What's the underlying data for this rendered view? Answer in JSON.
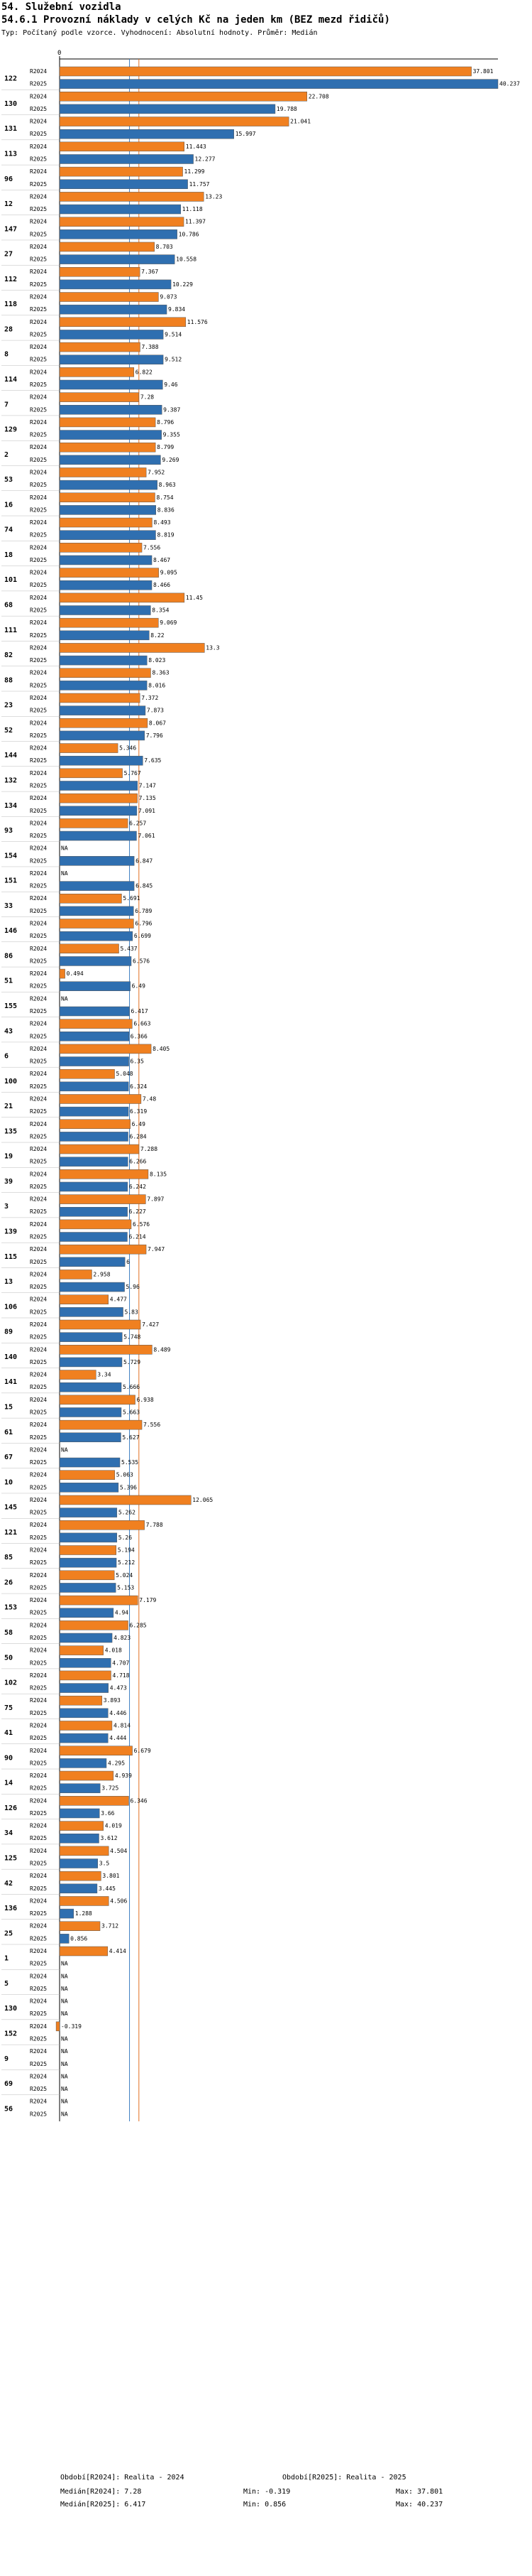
{
  "header": {
    "section": "54. Služební vozidla",
    "title": "54.6.1 Provozní náklady v celých Kč na jeden km (BEZ mezd řidičů)",
    "subtitle": "Typ: Počítaný podle vzorce. Vyhodnocení: Absolutní hodnoty. Průměr: Medián"
  },
  "chart_data": {
    "type": "bar",
    "orientation": "horizontal",
    "xlim": [
      0,
      40.237
    ],
    "x_tick_label": "0",
    "colors": {
      "R2024": "#f08020",
      "R2025": "#2f6fb0",
      "median2024": "#e07020",
      "median2025": "#3a7cc0",
      "grid": "#7ab0d8"
    },
    "medians": {
      "R2024": 7.28,
      "R2025": 6.417
    },
    "series_names": [
      "R2024",
      "R2025"
    ],
    "categories": [
      {
        "id": "122",
        "R2024": 37.801,
        "R2025": 40.237
      },
      {
        "id": "130",
        "R2024": 22.708,
        "R2025": 19.788
      },
      {
        "id": "131",
        "R2024": 21.041,
        "R2025": 15.997
      },
      {
        "id": "113",
        "R2024": 11.443,
        "R2025": 12.277
      },
      {
        "id": "96",
        "R2024": 11.299,
        "R2025": 11.757
      },
      {
        "id": "12",
        "R2024": 13.23,
        "R2025": 11.118
      },
      {
        "id": "147",
        "R2024": 11.397,
        "R2025": 10.786
      },
      {
        "id": "27",
        "R2024": 8.703,
        "R2025": 10.558
      },
      {
        "id": "112",
        "R2024": 7.367,
        "R2025": 10.229
      },
      {
        "id": "118",
        "R2024": 9.073,
        "R2025": 9.834
      },
      {
        "id": "28",
        "R2024": 11.576,
        "R2025": 9.514
      },
      {
        "id": "8",
        "R2024": 7.388,
        "R2025": 9.512
      },
      {
        "id": "114",
        "R2024": 6.822,
        "R2025": 9.46
      },
      {
        "id": "7",
        "R2024": 7.28,
        "R2025": 9.387
      },
      {
        "id": "129",
        "R2024": 8.796,
        "R2025": 9.355
      },
      {
        "id": "2",
        "R2024": 8.799,
        "R2025": 9.269
      },
      {
        "id": "53",
        "R2024": 7.952,
        "R2025": 8.963
      },
      {
        "id": "16",
        "R2024": 8.754,
        "R2025": 8.836
      },
      {
        "id": "74",
        "R2024": 8.493,
        "R2025": 8.819
      },
      {
        "id": "18",
        "R2024": 7.556,
        "R2025": 8.467
      },
      {
        "id": "101",
        "R2024": 9.095,
        "R2025": 8.466
      },
      {
        "id": "68",
        "R2024": 11.45,
        "R2025": 8.354
      },
      {
        "id": "111",
        "R2024": 9.069,
        "R2025": 8.22
      },
      {
        "id": "82",
        "R2024": 13.3,
        "R2025": 8.023
      },
      {
        "id": "88",
        "R2024": 8.363,
        "R2025": 8.016
      },
      {
        "id": "23",
        "R2024": 7.372,
        "R2025": 7.873
      },
      {
        "id": "52",
        "R2024": 8.067,
        "R2025": 7.796
      },
      {
        "id": "144",
        "R2024": 5.346,
        "R2025": 7.635
      },
      {
        "id": "132",
        "R2024": 5.767,
        "R2025": 7.147
      },
      {
        "id": "134",
        "R2024": 7.135,
        "R2025": 7.091
      },
      {
        "id": "93",
        "R2024": 6.257,
        "R2025": 7.061
      },
      {
        "id": "154",
        "R2024": null,
        "R2025": 6.847
      },
      {
        "id": "151",
        "R2024": null,
        "R2025": 6.845
      },
      {
        "id": "33",
        "R2024": 5.691,
        "R2025": 6.789
      },
      {
        "id": "146",
        "R2024": 6.796,
        "R2025": 6.699
      },
      {
        "id": "86",
        "R2024": 5.437,
        "R2025": 6.576
      },
      {
        "id": "51",
        "R2024": 0.494,
        "R2025": 6.49
      },
      {
        "id": "155",
        "R2024": null,
        "R2025": 6.417
      },
      {
        "id": "43",
        "R2024": 6.663,
        "R2025": 6.366
      },
      {
        "id": "6",
        "R2024": 8.405,
        "R2025": 6.35
      },
      {
        "id": "100",
        "R2024": 5.048,
        "R2025": 6.324
      },
      {
        "id": "21",
        "R2024": 7.48,
        "R2025": 6.319
      },
      {
        "id": "135",
        "R2024": 6.49,
        "R2025": 6.284
      },
      {
        "id": "19",
        "R2024": 7.288,
        "R2025": 6.266
      },
      {
        "id": "39",
        "R2024": 8.135,
        "R2025": 6.242
      },
      {
        "id": "3",
        "R2024": 7.897,
        "R2025": 6.227
      },
      {
        "id": "139",
        "R2024": 6.576,
        "R2025": 6.214
      },
      {
        "id": "115",
        "R2024": 7.947,
        "R2025": 6
      },
      {
        "id": "13",
        "R2024": 2.958,
        "R2025": 5.96
      },
      {
        "id": "106",
        "R2024": 4.477,
        "R2025": 5.83
      },
      {
        "id": "89",
        "R2024": 7.427,
        "R2025": 5.748
      },
      {
        "id": "140",
        "R2024": 8.489,
        "R2025": 5.729
      },
      {
        "id": "141",
        "R2024": 3.34,
        "R2025": 5.666
      },
      {
        "id": "15",
        "R2024": 6.938,
        "R2025": 5.663
      },
      {
        "id": "61",
        "R2024": 7.556,
        "R2025": 5.627
      },
      {
        "id": "67",
        "R2024": null,
        "R2025": 5.535
      },
      {
        "id": "10",
        "R2024": 5.063,
        "R2025": 5.396
      },
      {
        "id": "145",
        "R2024": 12.065,
        "R2025": 5.262
      },
      {
        "id": "121",
        "R2024": 7.788,
        "R2025": 5.26
      },
      {
        "id": "85",
        "R2024": 5.194,
        "R2025": 5.212
      },
      {
        "id": "26",
        "R2024": 5.024,
        "R2025": 5.153
      },
      {
        "id": "153",
        "R2024": 7.179,
        "R2025": 4.94
      },
      {
        "id": "58",
        "R2024": 6.285,
        "R2025": 4.823
      },
      {
        "id": "50",
        "R2024": 4.018,
        "R2025": 4.707
      },
      {
        "id": "102",
        "R2024": 4.718,
        "R2025": 4.473
      },
      {
        "id": "75",
        "R2024": 3.893,
        "R2025": 4.446
      },
      {
        "id": "41",
        "R2024": 4.814,
        "R2025": 4.444
      },
      {
        "id": "90",
        "R2024": 6.679,
        "R2025": 4.295
      },
      {
        "id": "14",
        "R2024": 4.939,
        "R2025": 3.725
      },
      {
        "id": "126",
        "R2024": 6.346,
        "R2025": 3.66
      },
      {
        "id": "34",
        "R2024": 4.019,
        "R2025": 3.612
      },
      {
        "id": "125",
        "R2024": 4.504,
        "R2025": 3.5
      },
      {
        "id": "42",
        "R2024": 3.801,
        "R2025": 3.445
      },
      {
        "id": "136",
        "R2024": 4.506,
        "R2025": 1.288
      },
      {
        "id": "25",
        "R2024": 3.712,
        "R2025": 0.856
      },
      {
        "id": "1",
        "R2024": 4.414,
        "R2025": null
      },
      {
        "id": "5",
        "R2024": null,
        "R2025": null
      },
      {
        "id": "130",
        "R2024": null,
        "R2025": null
      },
      {
        "id": "152",
        "R2024": -0.319,
        "R2025": null
      },
      {
        "id": "9",
        "R2024": null,
        "R2025": null
      },
      {
        "id": "69",
        "R2024": null,
        "R2025": null
      },
      {
        "id": "56",
        "R2024": null,
        "R2025": null
      }
    ],
    "na_label": "NA"
  },
  "legend": {
    "left_title": "Období[R2024]: Realita - 2024",
    "right_title": "Období[R2025]: Realita - 2025",
    "rows": [
      {
        "median": "Medián[R2024]: 7.28",
        "min": "Min: -0.319",
        "max": "Max: 37.801"
      },
      {
        "median": "Medián[R2025]: 6.417",
        "min": "Min: 0.856",
        "max": "Max: 40.237"
      }
    ]
  }
}
